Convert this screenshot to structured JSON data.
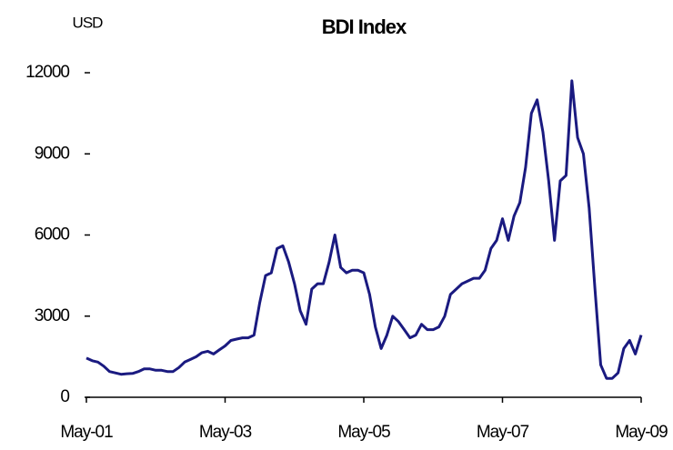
{
  "chart_data": {
    "type": "line",
    "title": "BDI Index",
    "y_label": "USD",
    "x": [
      "2001-05",
      "2001-06",
      "2001-07",
      "2001-08",
      "2001-09",
      "2001-10",
      "2001-11",
      "2001-12",
      "2002-01",
      "2002-02",
      "2002-03",
      "2002-04",
      "2002-05",
      "2002-06",
      "2002-07",
      "2002-08",
      "2002-09",
      "2002-10",
      "2002-11",
      "2002-12",
      "2003-01",
      "2003-02",
      "2003-03",
      "2003-04",
      "2003-05",
      "2003-06",
      "2003-07",
      "2003-08",
      "2003-09",
      "2003-10",
      "2003-11",
      "2003-12",
      "2004-01",
      "2004-02",
      "2004-03",
      "2004-04",
      "2004-05",
      "2004-06",
      "2004-07",
      "2004-08",
      "2004-09",
      "2004-10",
      "2004-11",
      "2004-12",
      "2005-01",
      "2005-02",
      "2005-03",
      "2005-04",
      "2005-05",
      "2005-06",
      "2005-07",
      "2005-08",
      "2005-09",
      "2005-10",
      "2005-11",
      "2005-12",
      "2006-01",
      "2006-02",
      "2006-03",
      "2006-04",
      "2006-05",
      "2006-06",
      "2006-07",
      "2006-08",
      "2006-09",
      "2006-10",
      "2006-11",
      "2006-12",
      "2007-01",
      "2007-02",
      "2007-03",
      "2007-04",
      "2007-05",
      "2007-06",
      "2007-07",
      "2007-08",
      "2007-09",
      "2007-10",
      "2007-11",
      "2007-12",
      "2008-01",
      "2008-02",
      "2008-03",
      "2008-04",
      "2008-05",
      "2008-06",
      "2008-07",
      "2008-08",
      "2008-09",
      "2008-10",
      "2008-11",
      "2008-12",
      "2009-01",
      "2009-02",
      "2009-03",
      "2009-04",
      "2009-05"
    ],
    "series": [
      {
        "name": "BDI",
        "color": "#1a1a80",
        "values": [
          1450,
          1350,
          1300,
          1150,
          950,
          900,
          850,
          870,
          880,
          950,
          1050,
          1050,
          1000,
          1000,
          950,
          950,
          1100,
          1300,
          1400,
          1500,
          1650,
          1700,
          1600,
          1750,
          1900,
          2100,
          2150,
          2200,
          2200,
          2300,
          3500,
          4500,
          4600,
          5500,
          5600,
          5000,
          4200,
          3200,
          2700,
          4000,
          4200,
          4200,
          5000,
          6000,
          4800,
          4600,
          4700,
          4700,
          4600,
          3800,
          2600,
          1800,
          2300,
          3000,
          2800,
          2500,
          2200,
          2300,
          2700,
          2500,
          2500,
          2600,
          3000,
          3800,
          4000,
          4200,
          4300,
          4400,
          4400,
          4700,
          5500,
          5800,
          6600,
          5800,
          6700,
          7200,
          8500,
          10500,
          11000,
          9800,
          8000,
          5800,
          8000,
          8200,
          11700,
          9600,
          9000,
          7000,
          4000,
          1200,
          700,
          700,
          900,
          1800,
          2100,
          1600,
          2300
        ]
      }
    ],
    "xlim": [
      "2001-05",
      "2009-05"
    ],
    "xticks": [
      {
        "value": "2001-05",
        "label": "May-01"
      },
      {
        "value": "2003-05",
        "label": "May-03"
      },
      {
        "value": "2005-05",
        "label": "May-05"
      },
      {
        "value": "2007-05",
        "label": "May-07"
      },
      {
        "value": "2009-05",
        "label": "May-09"
      }
    ],
    "ylim": [
      0,
      12000
    ],
    "yticks": [
      0,
      3000,
      6000,
      9000,
      12000
    ],
    "grid": false
  }
}
